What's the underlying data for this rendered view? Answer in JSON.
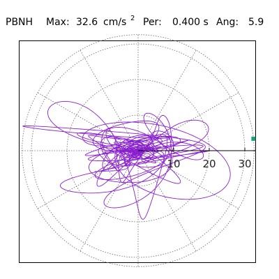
{
  "chart_data": {
    "type": "polar-orbit",
    "station": "PBNH",
    "max_label": "Max:",
    "max_value": "32.6",
    "max_unit": "cm/s",
    "max_unit_exponent": "2",
    "period_label": "Per:",
    "period_value": "0.400 s",
    "angle_label": "Ang:",
    "angle_value": "5.9",
    "radial_ticks": [
      "10",
      "20",
      "30"
    ],
    "radial_max": 32.6,
    "ring_radii": [
      10,
      20,
      30
    ],
    "spoke_angles_deg": [
      0,
      30,
      60,
      90,
      120,
      150,
      180,
      210,
      240,
      270,
      300,
      330
    ],
    "peak_point": {
      "r": 32.6,
      "theta_deg": 5.9
    },
    "trace_color": "#8a1fd1",
    "marker_color": "#1aa07a",
    "grid_color": "#666666"
  }
}
